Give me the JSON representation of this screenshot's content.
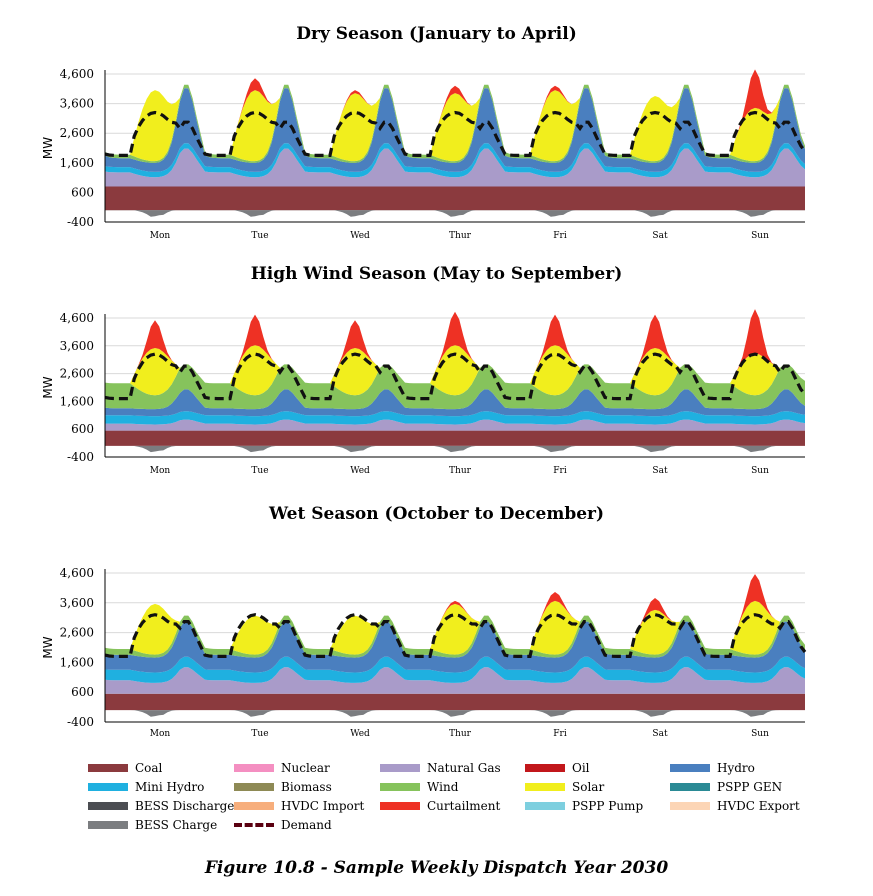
{
  "colors": {
    "Coal": "#8b3a3e",
    "Nuclear": "#f48fc1",
    "Natural Gas": "#a99bc9",
    "Oil": "#c2171b",
    "Hydro": "#4a7fbf",
    "Mini Hydro": "#1fb0e0",
    "Biomass": "#8e8a55",
    "Wind": "#86c35c",
    "Solar": "#f1ee1d",
    "PSPP GEN": "#2a8a95",
    "BESS Discharge": "#4b4d52",
    "HVDC Import": "#f7ae7c",
    "Curtailment": "#ee3124",
    "PSPP Pump": "#7dcfdf",
    "HVDC Export": "#fcd5b5",
    "BESS Charge": "#7b7d80",
    "Demand": "#5a0010"
  },
  "chart_data": [
    {
      "type": "area",
      "title": "Dry Season (January to April)",
      "ylabel": "MW",
      "ylim": [
        -400,
        4600
      ],
      "yticks": [
        "4,600",
        "3,600",
        "2,600",
        "1,600",
        "600",
        "-400"
      ],
      "x_categories": [
        "Mon",
        "Tue",
        "Wed",
        "Thur",
        "Fri",
        "Sat",
        "Sun"
      ],
      "hours_per_day": 24,
      "coal_mw": 800,
      "profile": {
        "gas_base": [
          200,
          1300
        ],
        "hydro_day": 300,
        "hydro_peak": 1900,
        "minihydro": 180,
        "wind_day": 60,
        "wind_night": 120,
        "solar_peak": [
          2400,
          2400,
          2300,
          2300,
          2400,
          2200,
          1800
        ],
        "demand_night": 1850,
        "demand_evening": 3000,
        "demand_day": 3300,
        "curtailment_peak": [
          0,
          400,
          100,
          250,
          150,
          0,
          1300
        ]
      },
      "series": [
        {
          "name": "Coal"
        },
        {
          "name": "Natural Gas"
        },
        {
          "name": "Mini Hydro"
        },
        {
          "name": "Hydro"
        },
        {
          "name": "Wind"
        },
        {
          "name": "Solar"
        },
        {
          "name": "Curtailment"
        },
        {
          "name": "BESS Charge"
        },
        {
          "name": "Demand"
        }
      ]
    },
    {
      "type": "area",
      "title": "High Wind Season (May to September)",
      "ylabel": "MW",
      "ylim": [
        -400,
        4600
      ],
      "yticks": [
        "4,600",
        "3,600",
        "2,600",
        "1,600",
        "600",
        "-400"
      ],
      "x_categories": [
        "Mon",
        "Tue",
        "Wed",
        "Thur",
        "Fri",
        "Sat",
        "Sun"
      ],
      "hours_per_day": 24,
      "coal_mw": 550,
      "profile": {
        "gas_base": [
          200,
          400
        ],
        "hydro_day": 250,
        "hydro_peak": 800,
        "minihydro": 300,
        "wind_day": 500,
        "wind_night": 900,
        "solar_peak": [
          1700,
          1800,
          1700,
          1800,
          1800,
          1700,
          1500
        ],
        "demand_night": 1700,
        "demand_evening": 2900,
        "demand_day": 3300,
        "curtailment_peak": [
          1000,
          1100,
          1000,
          1200,
          1100,
          1200,
          1600
        ]
      },
      "series": [
        {
          "name": "Coal"
        },
        {
          "name": "Natural Gas"
        },
        {
          "name": "Mini Hydro"
        },
        {
          "name": "Hydro"
        },
        {
          "name": "Wind"
        },
        {
          "name": "Solar"
        },
        {
          "name": "Curtailment"
        },
        {
          "name": "BESS Charge"
        },
        {
          "name": "Demand"
        }
      ]
    },
    {
      "type": "area",
      "title": "Wet Season (October to December)",
      "ylabel": "MW",
      "ylim": [
        -400,
        4600
      ],
      "yticks": [
        "4,600",
        "3,600",
        "2,600",
        "1,600",
        "600",
        "-400"
      ],
      "x_categories": [
        "Mon",
        "Tue",
        "Wed",
        "Thur",
        "Fri",
        "Sat",
        "Sun"
      ],
      "hours_per_day": 24,
      "coal_mw": 550,
      "profile": {
        "gas_base": [
          300,
          900
        ],
        "hydro_day": 500,
        "hydro_peak": 1200,
        "minihydro": 350,
        "wind_day": 100,
        "wind_night": 200,
        "solar_peak": [
          1700,
          1300,
          1300,
          1700,
          1800,
          1500,
          1800
        ],
        "demand_night": 1800,
        "demand_evening": 3000,
        "demand_day": 3200,
        "curtailment_peak": [
          0,
          0,
          0,
          100,
          300,
          400,
          900
        ]
      },
      "series": [
        {
          "name": "Coal"
        },
        {
          "name": "Natural Gas"
        },
        {
          "name": "Mini Hydro"
        },
        {
          "name": "Hydro"
        },
        {
          "name": "Wind"
        },
        {
          "name": "Solar"
        },
        {
          "name": "Curtailment"
        },
        {
          "name": "BESS Charge"
        },
        {
          "name": "Demand"
        }
      ]
    }
  ],
  "legend": [
    {
      "label": "Coal"
    },
    {
      "label": "Nuclear"
    },
    {
      "label": "Natural Gas"
    },
    {
      "label": "Oil"
    },
    {
      "label": "Hydro"
    },
    {
      "label": "Mini Hydro"
    },
    {
      "label": "Biomass"
    },
    {
      "label": "Wind"
    },
    {
      "label": "Solar"
    },
    {
      "label": "PSPP GEN"
    },
    {
      "label": "BESS Discharge"
    },
    {
      "label": "HVDC Import"
    },
    {
      "label": "Curtailment"
    },
    {
      "label": "PSPP Pump"
    },
    {
      "label": "HVDC Export"
    },
    {
      "label": "BESS Charge"
    },
    {
      "label": "Demand"
    }
  ],
  "caption": "Figure 10.8 - Sample Weekly Dispatch Year 2030"
}
